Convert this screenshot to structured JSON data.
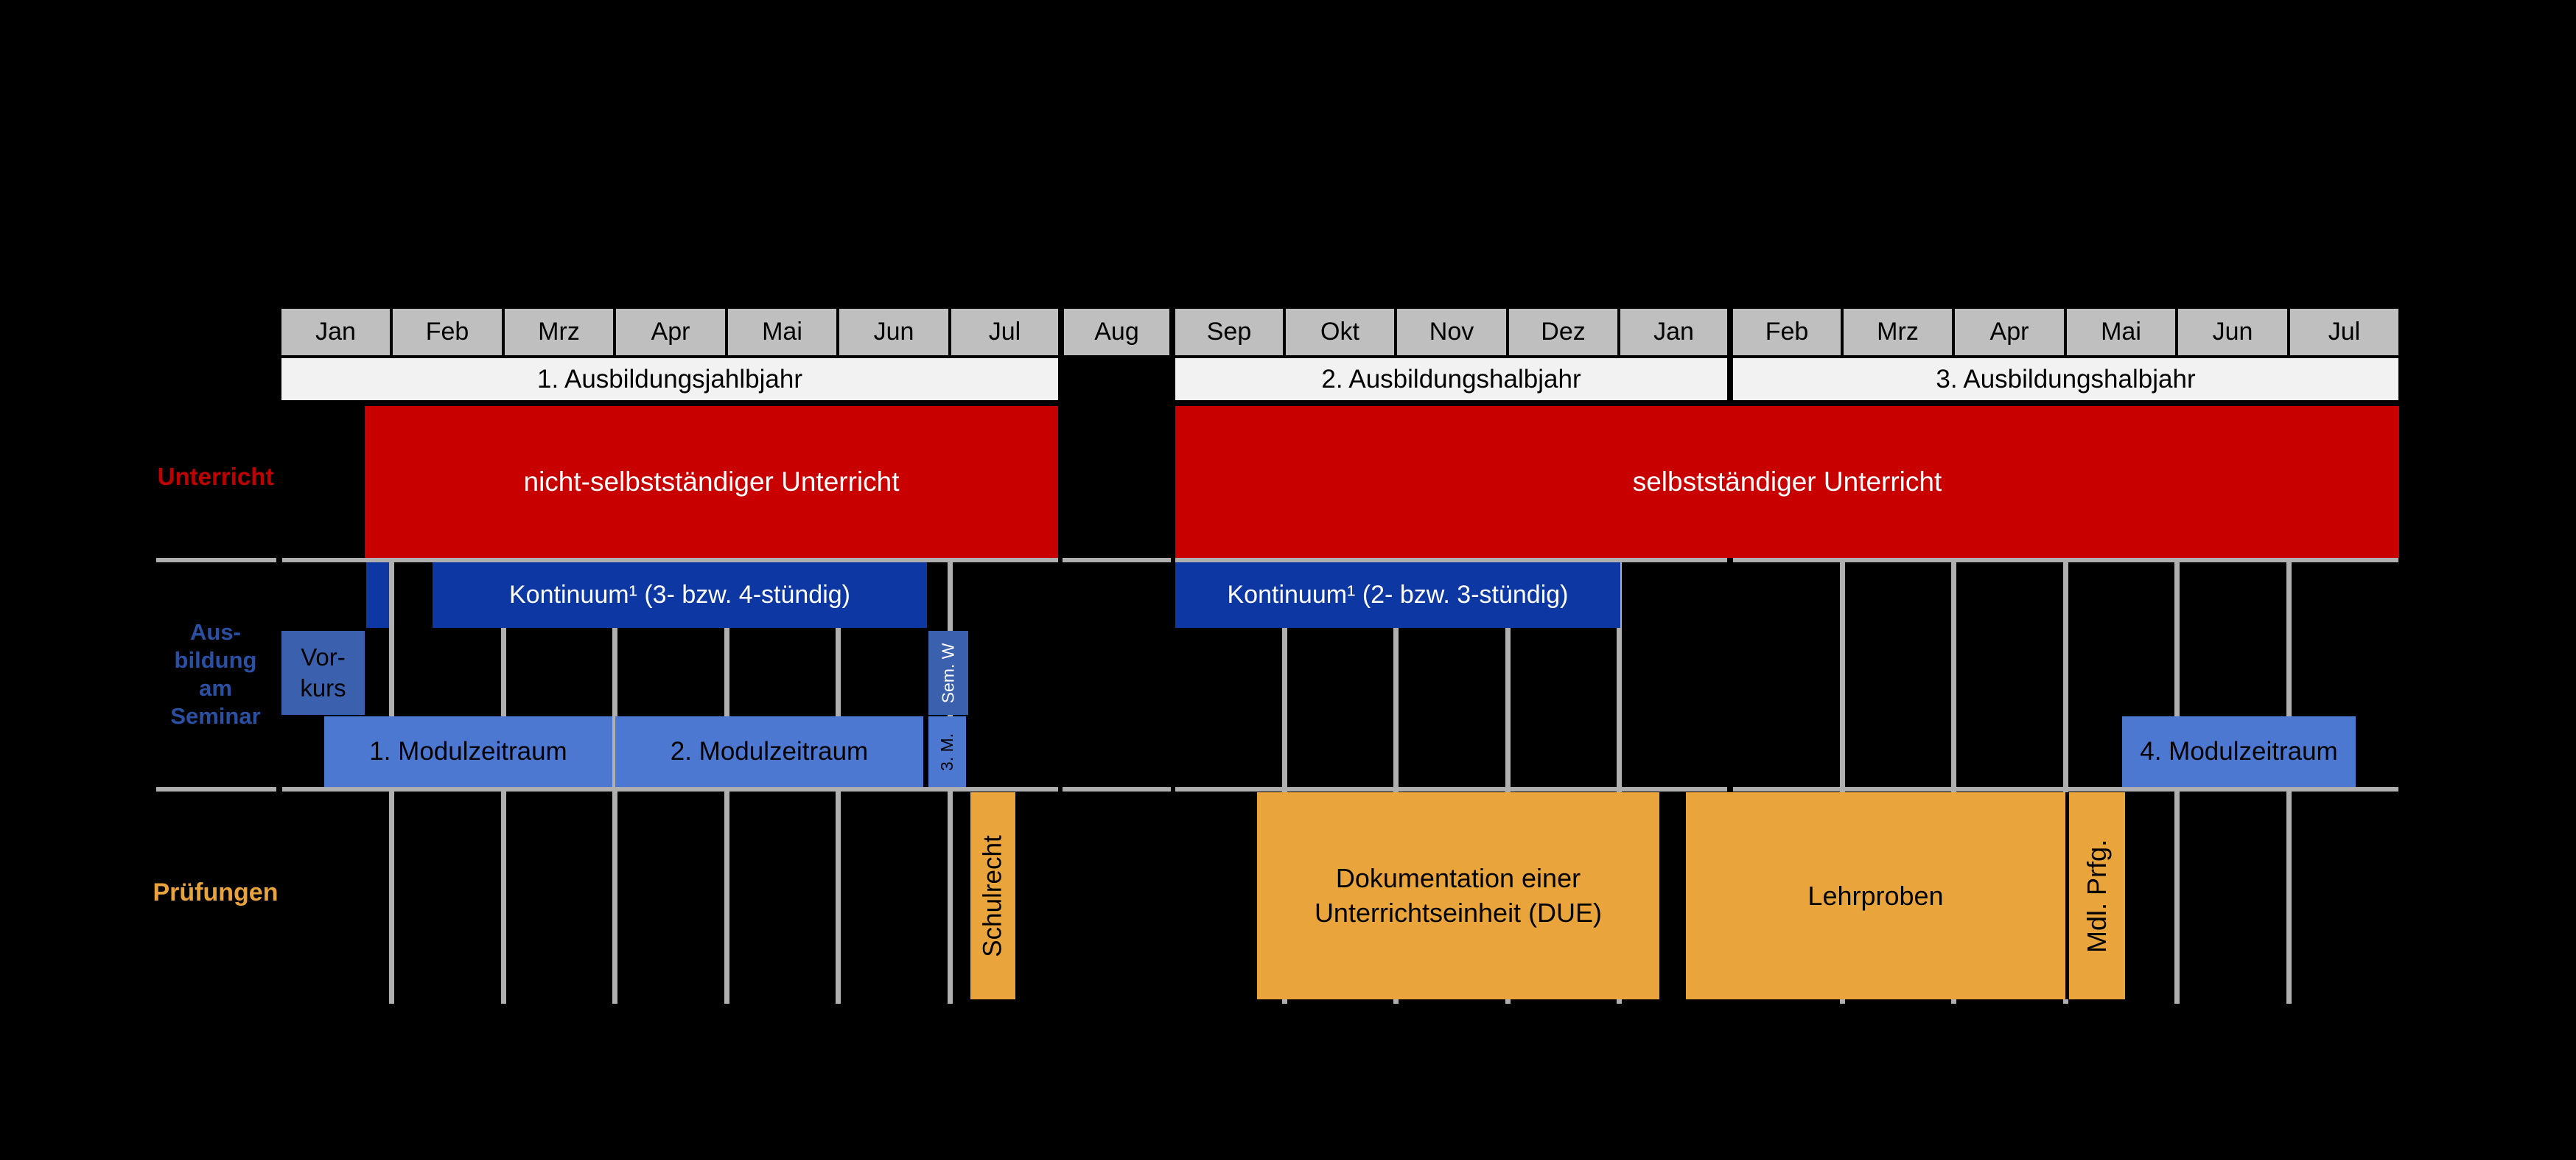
{
  "months": [
    "Jan",
    "Feb",
    "Mrz",
    "Apr",
    "Mai",
    "Jun",
    "Jul",
    "Aug",
    "Sep",
    "Okt",
    "Nov",
    "Dez",
    "Jan",
    "Feb",
    "Mrz",
    "Apr",
    "Mai",
    "Jun",
    "Jul"
  ],
  "periods": {
    "p1": "1. Ausbildungsjahlbjahr",
    "p2": "2. Ausbildungshalbjahr",
    "p3": "3. Ausbildungshalbjahr"
  },
  "row_labels": {
    "unterricht": "Unterricht",
    "seminar": [
      "Aus-",
      "bildung",
      "am",
      "Seminar"
    ],
    "pruefungen": "Prüfungen"
  },
  "bars": {
    "unterricht_1": "nicht-selbstständiger Unterricht",
    "unterricht_2": "selbstständiger Unterricht",
    "kontinuum_1": "Kontinuum¹ (3- bzw. 4-stündig)",
    "kontinuum_2": "Kontinuum¹ (2- bzw. 3-stündig)",
    "vorkurs": [
      "Vor-",
      "kurs"
    ],
    "sem_w": "Sem. W",
    "modul_1": "1. Modulzeitraum",
    "modul_2": "2. Modulzeitraum",
    "modul_3": "3. M.",
    "modul_4": "4. Modulzeitraum",
    "schulrecht": "Schulrecht",
    "due": [
      "Dokumentation einer",
      "Unterrichtseinheit (DUE)"
    ],
    "lehrproben": "Lehrproben",
    "mdl_prfg": "Mdl. Prfg."
  },
  "colors": {
    "background": "#000000",
    "month_cell": "#BFBFBF",
    "period_cell": "#F2F2F2",
    "red": "#C80000",
    "dark_blue": "#0D38A3",
    "medium_blue": "#3B60AE",
    "light_blue": "#4D78D2",
    "orange": "#E9A53C",
    "grid_line": "#AFAFAF",
    "label_red": "#C00000",
    "label_blue": "#2B50A3",
    "label_orange": "#E8A33C"
  }
}
